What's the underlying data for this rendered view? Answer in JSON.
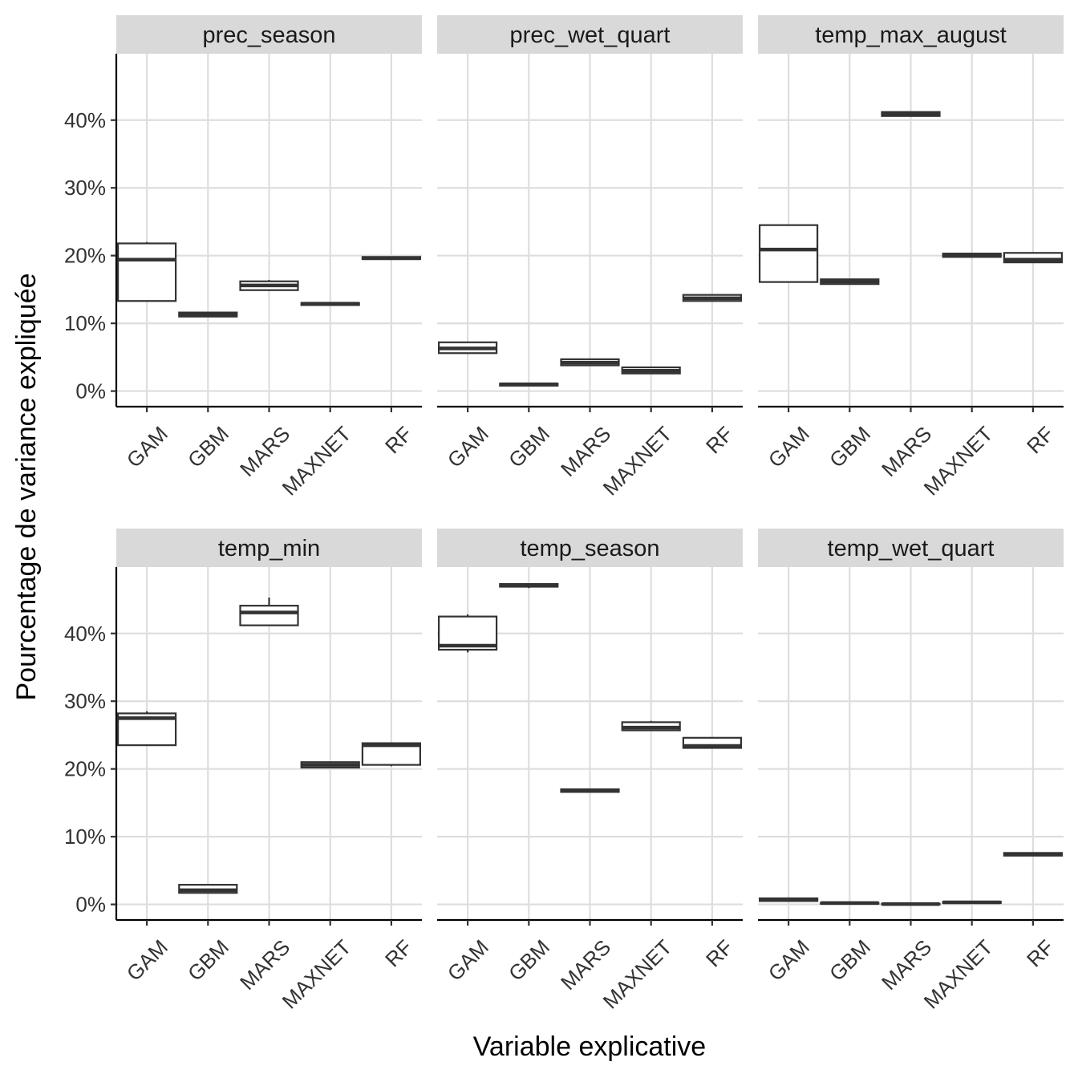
{
  "chart_data": {
    "type": "boxplot",
    "xlabel": "Variable explicative",
    "ylabel": "Pourcentage de variance expliquée",
    "y_tick_labels": [
      "0%",
      "10%",
      "20%",
      "30%",
      "40%"
    ],
    "y_ticks": [
      0,
      10,
      20,
      30,
      40
    ],
    "ylim": [
      -2.3,
      49.8
    ],
    "categories": [
      "GAM",
      "GBM",
      "MARS",
      "MAXNET",
      "RF"
    ],
    "grid": true,
    "facets": [
      {
        "title": "prec_season",
        "boxes": [
          {
            "category": "GAM",
            "min": 13.3,
            "q1": 13.3,
            "median": 19.4,
            "q3": 21.8,
            "max": 22.0
          },
          {
            "category": "GBM",
            "min": 11.0,
            "q1": 11.0,
            "median": 11.3,
            "q3": 11.6,
            "max": 11.6
          },
          {
            "category": "MARS",
            "min": 14.9,
            "q1": 14.9,
            "median": 15.6,
            "q3": 16.2,
            "max": 16.4
          },
          {
            "category": "MAXNET",
            "min": 12.7,
            "q1": 12.7,
            "median": 12.9,
            "q3": 13.0,
            "max": 13.0
          },
          {
            "category": "RF",
            "min": 19.5,
            "q1": 19.5,
            "median": 19.6,
            "q3": 19.8,
            "max": 19.8
          }
        ]
      },
      {
        "title": "prec_wet_quart",
        "boxes": [
          {
            "category": "GAM",
            "min": 5.6,
            "q1": 5.6,
            "median": 6.3,
            "q3": 7.2,
            "max": 7.2
          },
          {
            "category": "GBM",
            "min": 0.8,
            "q1": 0.8,
            "median": 1.0,
            "q3": 1.1,
            "max": 1.1
          },
          {
            "category": "MARS",
            "min": 3.8,
            "q1": 3.8,
            "median": 4.2,
            "q3": 4.7,
            "max": 4.7
          },
          {
            "category": "MAXNET",
            "min": 2.6,
            "q1": 2.6,
            "median": 3.0,
            "q3": 3.5,
            "max": 3.5
          },
          {
            "category": "RF",
            "min": 13.3,
            "q1": 13.3,
            "median": 13.7,
            "q3": 14.2,
            "max": 14.2
          }
        ]
      },
      {
        "title": "temp_max_august",
        "boxes": [
          {
            "category": "GAM",
            "min": 16.1,
            "q1": 16.1,
            "median": 20.9,
            "q3": 24.5,
            "max": 24.5
          },
          {
            "category": "GBM",
            "min": 15.8,
            "q1": 15.8,
            "median": 16.2,
            "q3": 16.5,
            "max": 16.5
          },
          {
            "category": "MARS",
            "min": 40.6,
            "q1": 40.6,
            "median": 40.9,
            "q3": 41.2,
            "max": 41.2
          },
          {
            "category": "MAXNET",
            "min": 19.8,
            "q1": 19.8,
            "median": 20.0,
            "q3": 20.3,
            "max": 20.3
          },
          {
            "category": "RF",
            "min": 19.0,
            "q1": 19.0,
            "median": 19.4,
            "q3": 20.4,
            "max": 20.4
          }
        ]
      },
      {
        "title": "temp_min",
        "boxes": [
          {
            "category": "GAM",
            "min": 23.5,
            "q1": 23.5,
            "median": 27.5,
            "q3": 28.2,
            "max": 28.5
          },
          {
            "category": "GBM",
            "min": 1.7,
            "q1": 1.7,
            "median": 2.1,
            "q3": 2.9,
            "max": 2.9
          },
          {
            "category": "MARS",
            "min": 41.2,
            "q1": 41.2,
            "median": 43.1,
            "q3": 44.1,
            "max": 45.3
          },
          {
            "category": "MAXNET",
            "min": 20.2,
            "q1": 20.2,
            "median": 20.6,
            "q3": 21.0,
            "max": 21.0
          },
          {
            "category": "RF",
            "min": 20.4,
            "q1": 20.6,
            "median": 23.5,
            "q3": 23.8,
            "max": 23.8
          }
        ]
      },
      {
        "title": "temp_season",
        "boxes": [
          {
            "category": "GAM",
            "min": 37.2,
            "q1": 37.6,
            "median": 38.2,
            "q3": 42.5,
            "max": 42.8
          },
          {
            "category": "GBM",
            "min": 46.7,
            "q1": 46.9,
            "median": 47.1,
            "q3": 47.3,
            "max": 47.3
          },
          {
            "category": "MARS",
            "min": 16.6,
            "q1": 16.6,
            "median": 16.8,
            "q3": 17.0,
            "max": 17.0
          },
          {
            "category": "MAXNET",
            "min": 25.7,
            "q1": 25.7,
            "median": 26.1,
            "q3": 26.9,
            "max": 27.1
          },
          {
            "category": "RF",
            "min": 23.1,
            "q1": 23.1,
            "median": 23.4,
            "q3": 24.6,
            "max": 24.6
          }
        ]
      },
      {
        "title": "temp_wet_quart",
        "boxes": [
          {
            "category": "GAM",
            "min": 0.5,
            "q1": 0.5,
            "median": 0.7,
            "q3": 0.9,
            "max": 0.9
          },
          {
            "category": "GBM",
            "min": 0.1,
            "q1": 0.1,
            "median": 0.2,
            "q3": 0.25,
            "max": 0.25
          },
          {
            "category": "MARS",
            "min": 0.0,
            "q1": 0.0,
            "median": 0.05,
            "q3": 0.1,
            "max": 0.1
          },
          {
            "category": "MAXNET",
            "min": 0.2,
            "q1": 0.2,
            "median": 0.3,
            "q3": 0.4,
            "max": 0.4
          },
          {
            "category": "RF",
            "min": 7.2,
            "q1": 7.2,
            "median": 7.4,
            "q3": 7.6,
            "max": 7.6
          }
        ]
      }
    ]
  }
}
